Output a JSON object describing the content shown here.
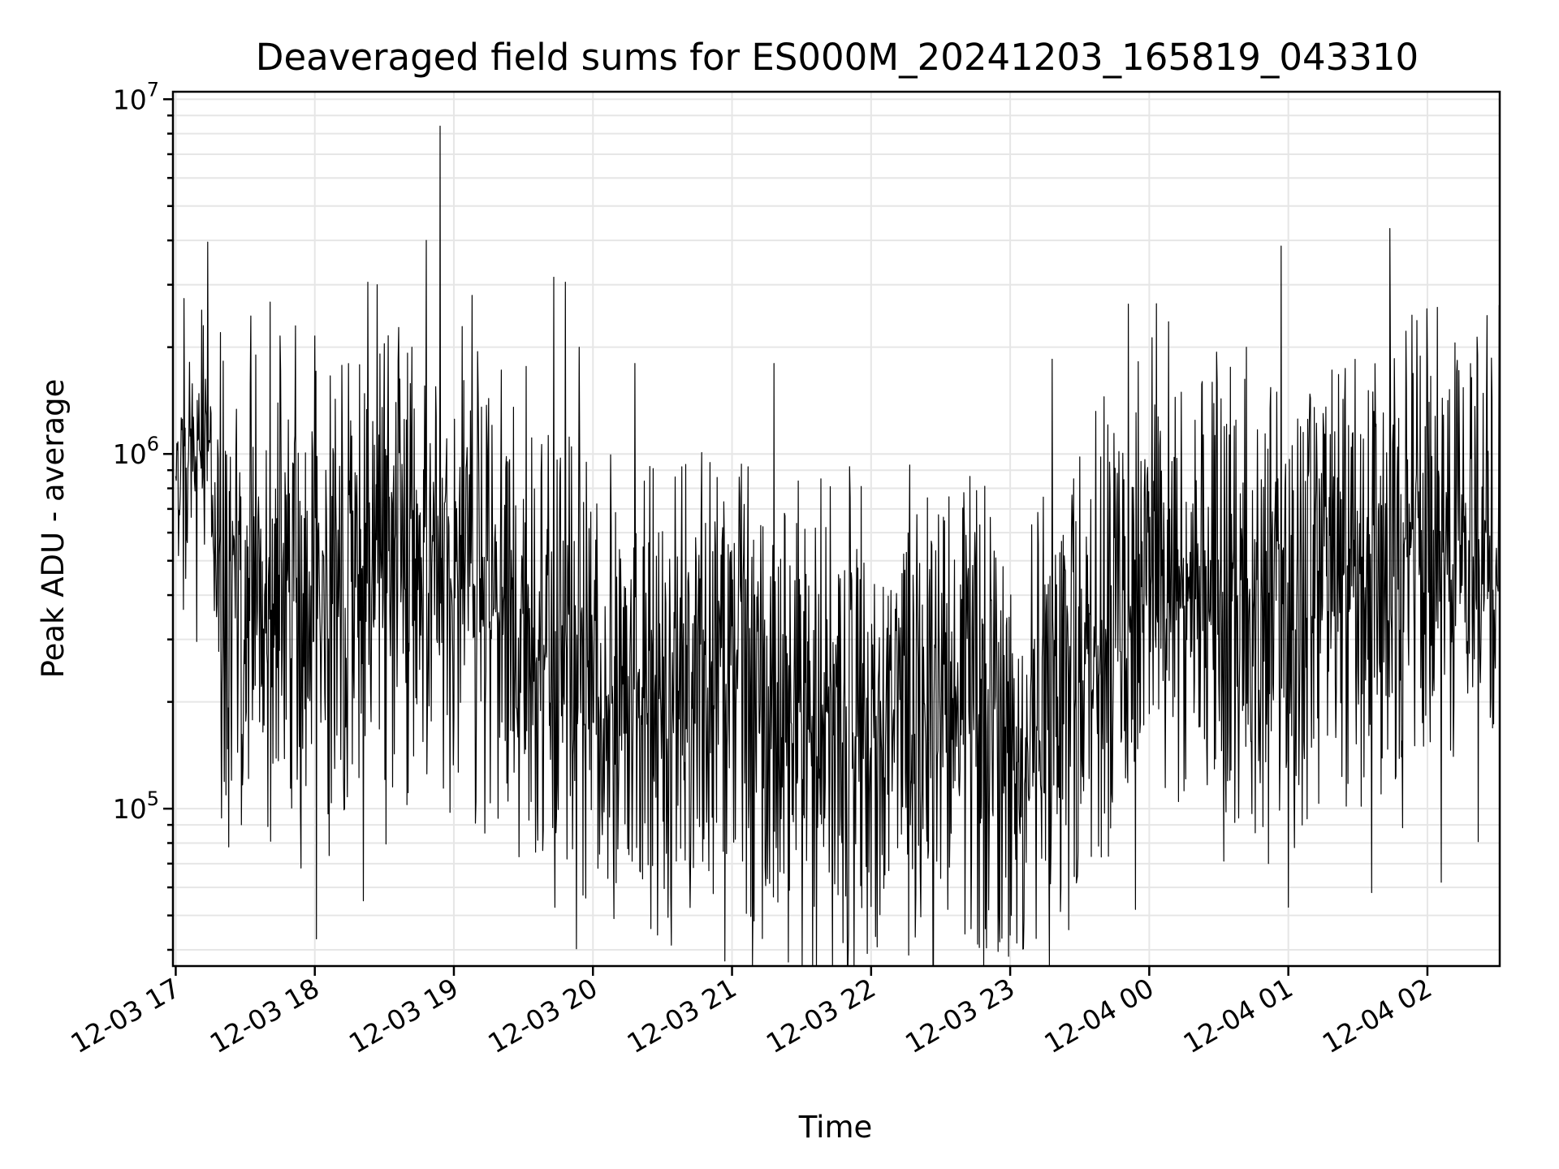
{
  "chart_data": {
    "type": "line",
    "title": "Deaveraged field sums for ES000M_20241203_165819_043310",
    "xlabel": "Time",
    "ylabel": "Peak ADU - average",
    "yscale": "log",
    "ylim": [
      36000,
      10500000
    ],
    "y_ticks": [
      {
        "value": 100000,
        "base": "10",
        "exp": "5"
      },
      {
        "value": 1000000,
        "base": "10",
        "exp": "6"
      },
      {
        "value": 10000000,
        "base": "10",
        "exp": "7"
      }
    ],
    "x_range_hours": [
      -0.02,
      9.52
    ],
    "x_ticks": [
      {
        "hour": 0,
        "label": "12-03 17"
      },
      {
        "hour": 1,
        "label": "12-03 18"
      },
      {
        "hour": 2,
        "label": "12-03 19"
      },
      {
        "hour": 3,
        "label": "12-03 20"
      },
      {
        "hour": 4,
        "label": "12-03 21"
      },
      {
        "hour": 5,
        "label": "12-03 22"
      },
      {
        "hour": 6,
        "label": "12-03 23"
      },
      {
        "hour": 7,
        "label": "12-04 00"
      },
      {
        "hour": 8,
        "label": "12-04 01"
      },
      {
        "hour": 9,
        "label": "12-04 02"
      }
    ],
    "grid": true,
    "series": [
      {
        "name": "deaveraged field sums",
        "color": "#000000",
        "baseline_profile": [
          {
            "hour": 0.0,
            "value": 950000
          },
          {
            "hour": 0.25,
            "value": 1050000
          },
          {
            "hour": 0.3,
            "value": 400000
          },
          {
            "hour": 1.0,
            "value": 380000
          },
          {
            "hour": 1.5,
            "value": 500000
          },
          {
            "hour": 1.9,
            "value": 450000
          },
          {
            "hour": 2.5,
            "value": 300000
          },
          {
            "hour": 3.0,
            "value": 220000
          },
          {
            "hour": 4.0,
            "value": 200000
          },
          {
            "hour": 4.5,
            "value": 140000
          },
          {
            "hour": 5.0,
            "value": 170000
          },
          {
            "hour": 5.5,
            "value": 200000
          },
          {
            "hour": 6.0,
            "value": 160000
          },
          {
            "hour": 6.5,
            "value": 200000
          },
          {
            "hour": 6.8,
            "value": 400000
          },
          {
            "hour": 7.0,
            "value": 520000
          },
          {
            "hour": 7.5,
            "value": 400000
          },
          {
            "hour": 8.0,
            "value": 320000
          },
          {
            "hour": 8.3,
            "value": 500000
          },
          {
            "hour": 8.6,
            "value": 380000
          },
          {
            "hour": 9.0,
            "value": 550000
          },
          {
            "hour": 9.52,
            "value": 600000
          }
        ],
        "spikes": [
          {
            "hour": 0.2,
            "value": 2300000
          },
          {
            "hour": 0.32,
            "value": 2200000
          },
          {
            "hour": 0.54,
            "value": 2450000
          },
          {
            "hour": 0.75,
            "value": 2150000
          },
          {
            "hour": 1.0,
            "value": 2150000
          },
          {
            "hour": 1.38,
            "value": 3050000
          },
          {
            "hour": 1.45,
            "value": 3000000
          },
          {
            "hour": 1.7,
            "value": 2000000
          },
          {
            "hour": 1.8,
            "value": 4000000
          },
          {
            "hour": 1.9,
            "value": 8400000
          },
          {
            "hour": 2.13,
            "value": 2800000
          },
          {
            "hour": 2.72,
            "value": 3150000
          },
          {
            "hour": 2.8,
            "value": 3050000
          },
          {
            "hour": 2.9,
            "value": 2000000
          },
          {
            "hour": 3.3,
            "value": 1800000
          },
          {
            "hour": 4.3,
            "value": 1800000
          },
          {
            "hour": 6.3,
            "value": 1850000
          },
          {
            "hour": 7.38,
            "value": 1600000
          },
          {
            "hour": 7.7,
            "value": 2000000
          },
          {
            "hour": 8.25,
            "value": 1300000
          }
        ],
        "dips": [
          {
            "hour": 0.38,
            "value": 78000
          },
          {
            "hour": 0.9,
            "value": 68000
          },
          {
            "hour": 1.35,
            "value": 55000
          },
          {
            "hour": 3.15,
            "value": 49000
          },
          {
            "hour": 4.15,
            "value": 56000
          },
          {
            "hour": 5.0,
            "value": 53000
          },
          {
            "hour": 5.55,
            "value": 52000
          },
          {
            "hour": 6.0,
            "value": 44000
          },
          {
            "hour": 6.1,
            "value": 49000
          },
          {
            "hour": 6.9,
            "value": 52000
          },
          {
            "hour": 8.6,
            "value": 58000
          },
          {
            "hour": 9.1,
            "value": 62000
          }
        ]
      }
    ]
  }
}
